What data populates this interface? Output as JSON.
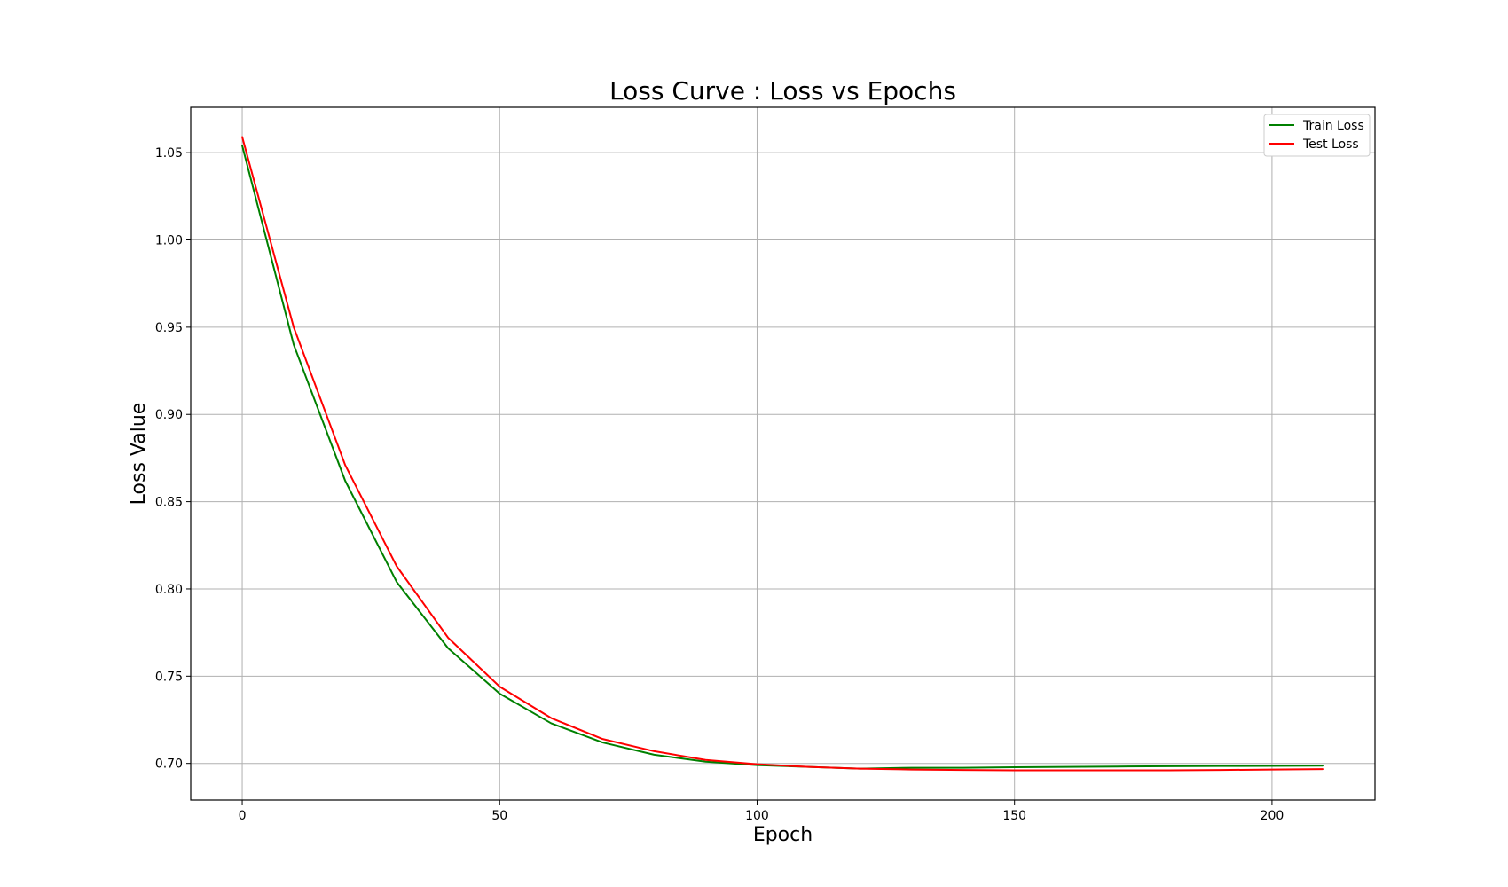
{
  "chart_data": {
    "type": "line",
    "title": "Loss Curve : Loss vs Epochs",
    "xlabel": "Epoch",
    "ylabel": "Loss Value",
    "xlim": [
      -10,
      220
    ],
    "ylim": [
      0.679,
      1.076
    ],
    "xticks": [
      0,
      50,
      100,
      150,
      200
    ],
    "yticks": [
      0.7,
      0.75,
      0.8,
      0.85,
      0.9,
      0.95,
      1.0,
      1.05
    ],
    "xtick_labels": [
      "0",
      "50",
      "100",
      "150",
      "200"
    ],
    "ytick_labels": [
      "0.70",
      "0.75",
      "0.80",
      "0.85",
      "0.90",
      "0.95",
      "1.00",
      "1.05"
    ],
    "grid": true,
    "legend_position": "top-right",
    "x": [
      0,
      10,
      20,
      30,
      40,
      50,
      60,
      70,
      80,
      90,
      100,
      110,
      120,
      130,
      140,
      150,
      160,
      170,
      180,
      190,
      200,
      210
    ],
    "series": [
      {
        "name": "Train Loss",
        "color": "#008000",
        "values": [
          1.054,
          0.94,
          0.862,
          0.804,
          0.766,
          0.74,
          0.723,
          0.712,
          0.705,
          0.701,
          0.699,
          0.698,
          0.697,
          0.6975,
          0.6975,
          0.6978,
          0.698,
          0.6982,
          0.6984,
          0.6985,
          0.6986,
          0.6987
        ]
      },
      {
        "name": "Test Loss",
        "color": "#ff0000",
        "values": [
          1.059,
          0.95,
          0.871,
          0.813,
          0.772,
          0.744,
          0.726,
          0.714,
          0.707,
          0.702,
          0.6995,
          0.698,
          0.697,
          0.6965,
          0.6962,
          0.696,
          0.696,
          0.696,
          0.696,
          0.6962,
          0.6965,
          0.6967
        ]
      }
    ]
  }
}
